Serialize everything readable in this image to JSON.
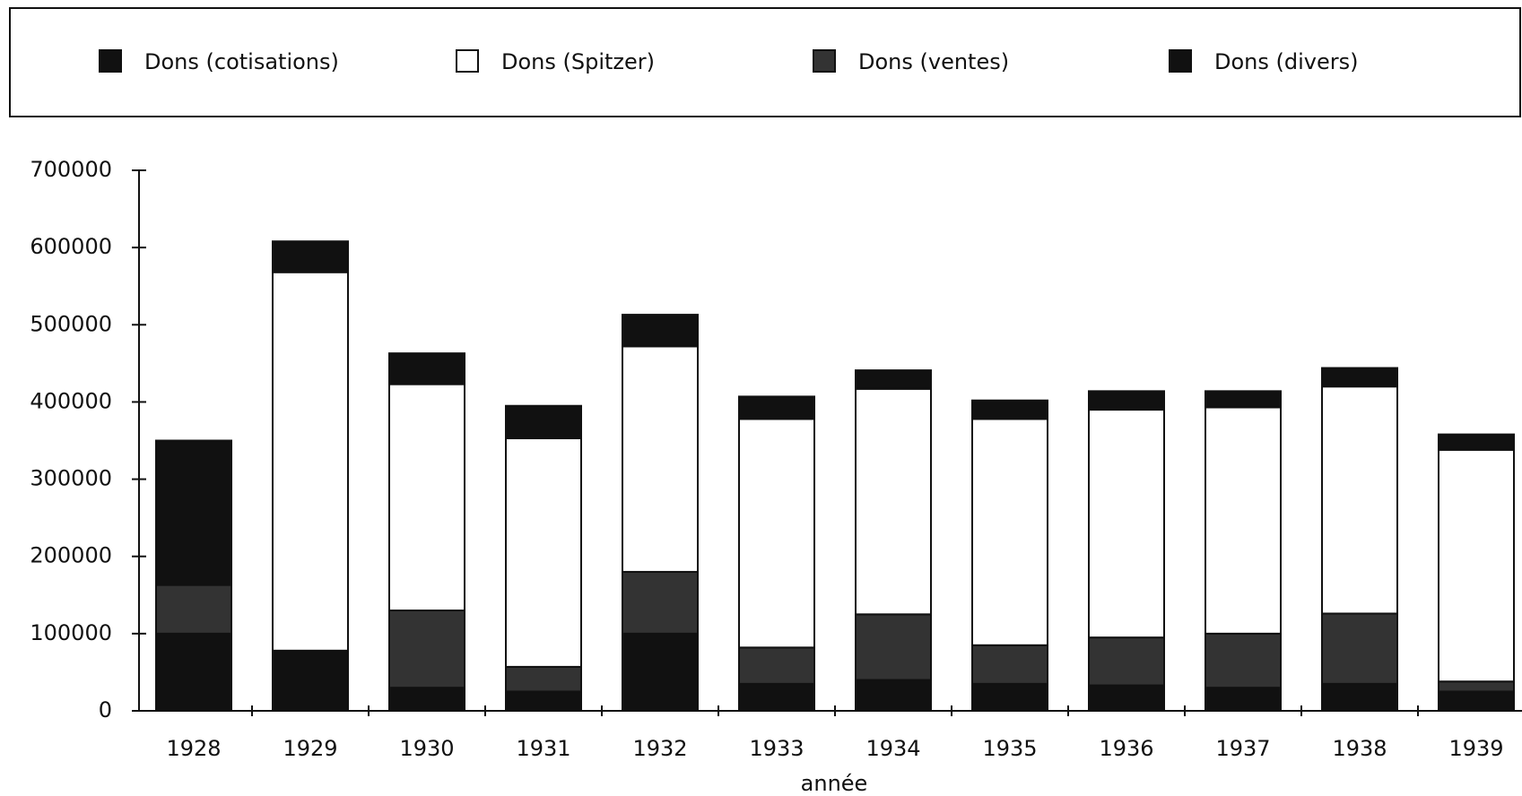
{
  "chart_data": {
    "type": "stacked_bar",
    "x_label": "année",
    "categories": [
      "1928",
      "1929",
      "1930",
      "1931",
      "1932",
      "1933",
      "1934",
      "1935",
      "1936",
      "1937",
      "1938",
      "1939"
    ],
    "series": [
      {
        "name": "Dons (cotisations)",
        "color": "#111111",
        "values": [
          100000,
          78000,
          30000,
          25000,
          100000,
          35000,
          40000,
          35000,
          33000,
          30000,
          35000,
          25000
        ]
      },
      {
        "name": "Dons (Spitzer)",
        "color": "#ffffff",
        "values": [
          0,
          490000,
          293000,
          296000,
          292000,
          296000,
          292000,
          293000,
          295000,
          293000,
          294000,
          300000
        ]
      },
      {
        "name": "Dons (ventes)",
        "color": "#333333",
        "values": [
          63000,
          0,
          100000,
          32000,
          80000,
          47000,
          85000,
          50000,
          62000,
          70000,
          91000,
          13000
        ]
      },
      {
        "name": "Dons (divers)",
        "color": "#111111",
        "values": [
          187000,
          40000,
          40000,
          42000,
          41000,
          29000,
          24000,
          24000,
          24000,
          21000,
          24000,
          20000
        ]
      }
    ],
    "ylim": [
      0,
      700000
    ],
    "yticks": [
      0,
      100000,
      200000,
      300000,
      400000,
      500000,
      600000,
      700000
    ],
    "grid": false
  }
}
